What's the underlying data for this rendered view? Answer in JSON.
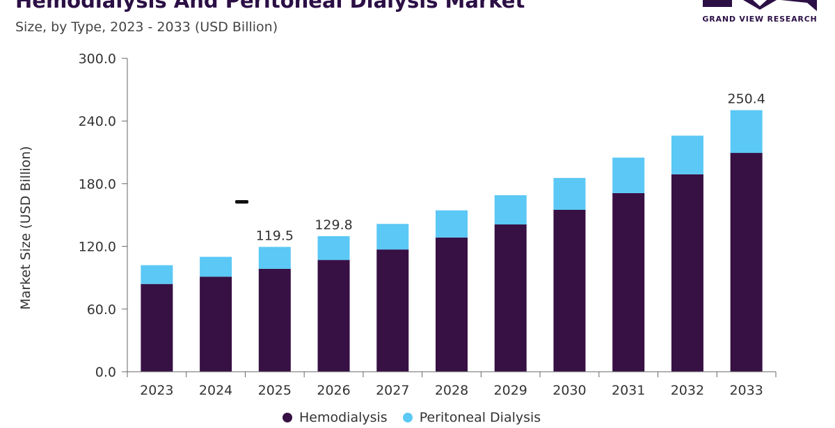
{
  "header": {
    "title": "Hemodialysis And Peritoneal Dialysis Market",
    "subtitle": "Size, by Type, 2023 - 2033 (USD Billion)"
  },
  "logo": {
    "text": "GRAND VIEW RESEARCH"
  },
  "chart_data": {
    "type": "bar",
    "stacked": true,
    "ylabel": "Market Size (USD Billion)",
    "ylim": [
      0,
      300
    ],
    "yticks": [
      "0.0",
      "60.0",
      "120.0",
      "180.0",
      "240.0",
      "300.0"
    ],
    "categories": [
      "2023",
      "2024",
      "2025",
      "2026",
      "2027",
      "2028",
      "2029",
      "2030",
      "2031",
      "2032",
      "2033"
    ],
    "series": [
      {
        "name": "Hemodialysis",
        "color": "#371044",
        "values": [
          84,
          91,
          98.5,
          107,
          117,
          128.5,
          141,
          155,
          171,
          189,
          209.5
        ]
      },
      {
        "name": "Peritoneal Dialysis",
        "color": "#5bc8f5",
        "values": [
          18,
          19,
          21,
          22.8,
          24.5,
          26,
          28,
          30.5,
          34,
          37,
          40.9
        ]
      }
    ],
    "data_labels": [
      {
        "category": "2025",
        "text": "119.5"
      },
      {
        "category": "2026",
        "text": "129.8"
      },
      {
        "category": "2033",
        "text": "250.4"
      }
    ],
    "grid": false,
    "legend": "bottom"
  }
}
